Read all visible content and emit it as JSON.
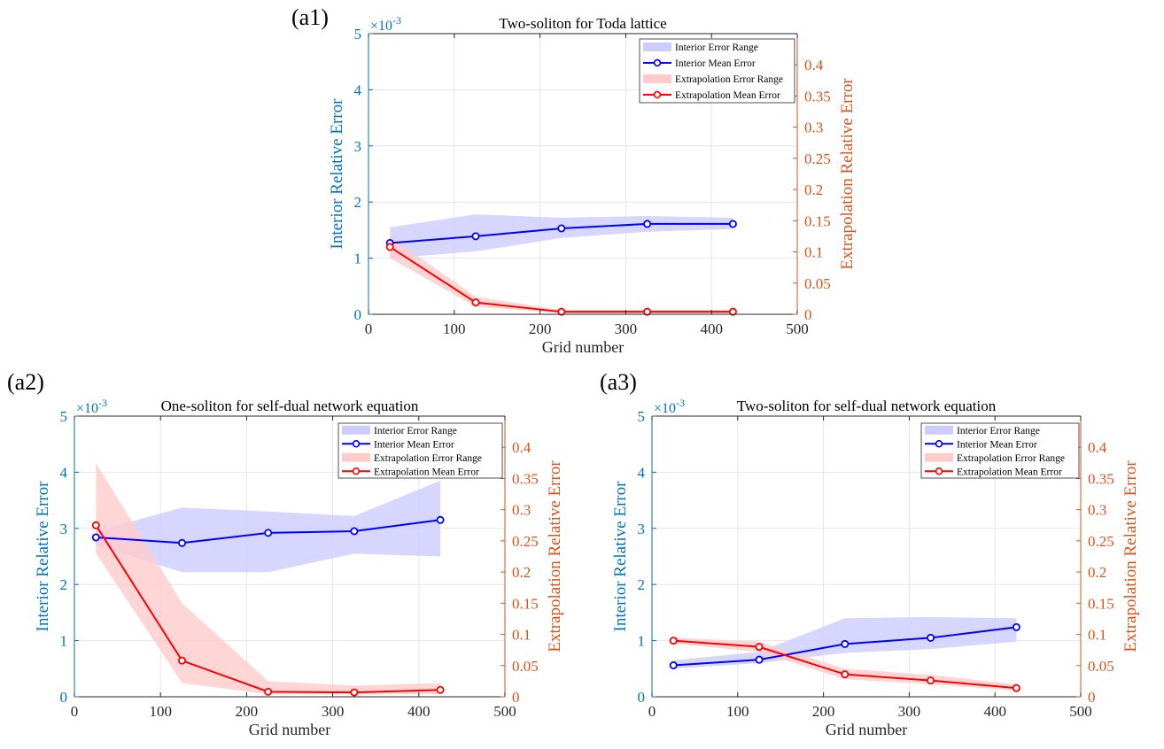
{
  "colors": {
    "left_axis": "#0072BD",
    "right_axis": "#D95319",
    "interior_line": "#0000FF",
    "interior_band": "#CCCCFF",
    "extrap_line": "#FF0000",
    "extrap_band": "#FFCCCC",
    "grid": "#E6E6E6"
  },
  "chart_data": [
    {
      "type": "line",
      "panel_label": "(a1)",
      "title": "Two-soliton for Toda lattice",
      "xlabel": "Grid number",
      "ylabel_left": "Interior Relative Error",
      "ylabel_right": "Extrapolation Relative Error",
      "y_left_exponent": "×10",
      "y_left_exponent_power": "-3",
      "xlim": [
        0,
        500
      ],
      "x_ticks": [
        "0",
        "100",
        "200",
        "300",
        "400",
        "500"
      ],
      "ylim_left": [
        0,
        5
      ],
      "y_left_ticks": [
        "0",
        "1",
        "2",
        "3",
        "4",
        "5"
      ],
      "ylim_right": [
        0,
        0.45
      ],
      "y_right_ticks": [
        "0",
        "0.05",
        "0.1",
        "0.15",
        "0.2",
        "0.25",
        "0.3",
        "0.35",
        "0.4"
      ],
      "grid": true,
      "legend_position": "top-right",
      "x": [
        25,
        125,
        225,
        325,
        425
      ],
      "series": [
        {
          "name": "Interior Error Range",
          "kind": "band",
          "axis": "left",
          "lower": [
            1.0,
            1.12,
            1.36,
            1.47,
            1.52
          ],
          "upper": [
            1.55,
            1.78,
            1.72,
            1.75,
            1.72
          ]
        },
        {
          "name": "Interior Mean Error",
          "kind": "line",
          "axis": "left",
          "values": [
            1.27,
            1.39,
            1.53,
            1.61,
            1.61
          ]
        },
        {
          "name": "Extrapolation Error Range",
          "kind": "band",
          "axis": "right",
          "lower": [
            0.09,
            0.012,
            0.002,
            0.002,
            0.002
          ],
          "upper": [
            0.125,
            0.028,
            0.007,
            0.007,
            0.007
          ]
        },
        {
          "name": "Extrapolation Mean Error",
          "kind": "line",
          "axis": "right",
          "values": [
            0.108,
            0.019,
            0.004,
            0.004,
            0.004
          ]
        }
      ]
    },
    {
      "type": "line",
      "panel_label": "(a2)",
      "title": "One-soliton for self-dual network equation",
      "xlabel": "Grid number",
      "ylabel_left": "Interior Relative Error",
      "ylabel_right": "Extrapolation Relative Error",
      "y_left_exponent": "×10",
      "y_left_exponent_power": "-3",
      "xlim": [
        0,
        500
      ],
      "x_ticks": [
        "0",
        "100",
        "200",
        "300",
        "400",
        "500"
      ],
      "ylim_left": [
        0,
        5
      ],
      "y_left_ticks": [
        "0",
        "1",
        "2",
        "3",
        "4",
        "5"
      ],
      "ylim_right": [
        0,
        0.45
      ],
      "y_right_ticks": [
        "0",
        "0.05",
        "0.1",
        "0.15",
        "0.2",
        "0.25",
        "0.3",
        "0.35",
        "0.4"
      ],
      "grid": true,
      "legend_position": "top-right",
      "x": [
        25,
        125,
        225,
        325,
        425
      ],
      "series": [
        {
          "name": "Interior Error Range",
          "kind": "band",
          "axis": "left",
          "lower": [
            2.7,
            2.22,
            2.22,
            2.55,
            2.5
          ],
          "upper": [
            2.95,
            3.37,
            3.3,
            3.22,
            3.85
          ]
        },
        {
          "name": "Interior Mean Error",
          "kind": "line",
          "axis": "left",
          "values": [
            2.84,
            2.74,
            2.92,
            2.95,
            3.15
          ]
        },
        {
          "name": "Extrapolation Error Range",
          "kind": "band",
          "axis": "right",
          "lower": [
            0.23,
            0.022,
            0.004,
            0.004,
            0.004
          ],
          "upper": [
            0.375,
            0.15,
            0.025,
            0.018,
            0.022
          ]
        },
        {
          "name": "Extrapolation Mean Error",
          "kind": "line",
          "axis": "right",
          "values": [
            0.275,
            0.058,
            0.008,
            0.007,
            0.011
          ]
        }
      ]
    },
    {
      "type": "line",
      "panel_label": "(a3)",
      "title": "Two-soliton for self-dual network equation",
      "xlabel": "Grid number",
      "ylabel_left": "Interior Relative Error",
      "ylabel_right": "Extrapolation Relative Error",
      "y_left_exponent": "×10",
      "y_left_exponent_power": "-3",
      "xlim": [
        0,
        500
      ],
      "x_ticks": [
        "0",
        "100",
        "200",
        "300",
        "400",
        "500"
      ],
      "ylim_left": [
        0,
        5
      ],
      "y_left_ticks": [
        "0",
        "1",
        "2",
        "3",
        "4",
        "5"
      ],
      "ylim_right": [
        0,
        0.45
      ],
      "y_right_ticks": [
        "0",
        "0.05",
        "0.1",
        "0.15",
        "0.2",
        "0.25",
        "0.3",
        "0.35",
        "0.4"
      ],
      "grid": true,
      "legend_position": "top-right",
      "x": [
        25,
        125,
        225,
        325,
        425
      ],
      "series": [
        {
          "name": "Interior Error Range",
          "kind": "band",
          "axis": "left",
          "lower": [
            0.5,
            0.6,
            0.78,
            0.85,
            0.98
          ],
          "upper": [
            0.65,
            0.8,
            1.4,
            1.42,
            1.4
          ]
        },
        {
          "name": "Interior Mean Error",
          "kind": "line",
          "axis": "left",
          "values": [
            0.56,
            0.66,
            0.94,
            1.05,
            1.24
          ]
        },
        {
          "name": "Extrapolation Error Range",
          "kind": "band",
          "axis": "right",
          "lower": [
            0.085,
            0.072,
            0.028,
            0.02,
            0.01
          ],
          "upper": [
            0.095,
            0.088,
            0.045,
            0.035,
            0.02
          ]
        },
        {
          "name": "Extrapolation Mean Error",
          "kind": "line",
          "axis": "right",
          "values": [
            0.09,
            0.08,
            0.036,
            0.026,
            0.014
          ]
        }
      ]
    }
  ]
}
